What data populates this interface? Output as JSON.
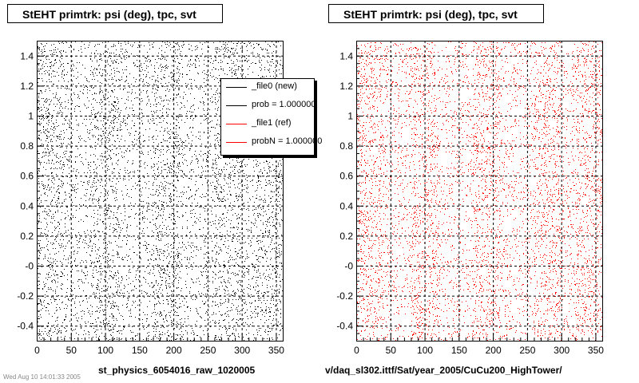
{
  "panels": [
    {
      "title": "StEHT primtrk: psi (deg), tpc, svt",
      "footer": "st_physics_6054016_raw_1020005",
      "marker_color": "#000000"
    },
    {
      "title": "StEHT primtrk: psi (deg), tpc, svt",
      "footer": "v/daq_sl302.ittf/Sat/year_2005/CuCu200_HighTower/",
      "marker_color": "#ff0000"
    }
  ],
  "legend": {
    "entries": [
      {
        "label": "_file0 (new)",
        "color": "#000000"
      },
      {
        "label": "prob = 1.000000",
        "color": "#000000"
      },
      {
        "label": "_file1 (ref)",
        "color": "#ff0000"
      },
      {
        "label": "probN = 1.000000",
        "color": "#ff0000"
      }
    ]
  },
  "footer_date": "Wed Aug 10 14:01:33 2005",
  "chart_data": [
    {
      "type": "scatter",
      "title": "StEHT primtrk: psi (deg), tpc, svt",
      "xlabel": "",
      "ylabel": "",
      "xlim": [
        0,
        360
      ],
      "ylim": [
        -0.5,
        1.5
      ],
      "x_ticks": [
        0,
        50,
        100,
        150,
        200,
        250,
        300,
        350
      ],
      "y_ticks": [
        {
          "value": -0.4,
          "label": "-0.4"
        },
        {
          "value": -0.2,
          "label": "-0.2"
        },
        {
          "value": 0.0,
          "label": "-0"
        },
        {
          "value": 0.2,
          "label": "0.2"
        },
        {
          "value": 0.4,
          "label": "0.4"
        },
        {
          "value": 0.6,
          "label": "0.6"
        },
        {
          "value": 0.8,
          "label": "0.8"
        },
        {
          "value": 1.0,
          "label": "1"
        },
        {
          "value": 1.2,
          "label": "1.2"
        },
        {
          "value": 1.4,
          "label": "1.4"
        }
      ],
      "grid": true,
      "legend_placement": "top-right",
      "series": [
        {
          "name": "_file0 (new)",
          "color": "#000000",
          "points": "approximately uniform scatter of ~6000 points over psi 0-360 deg and y -0.5 to 1.5, with denser vertical bands near psi 20, 100, 190, 280, 340"
        }
      ]
    },
    {
      "type": "scatter",
      "title": "StEHT primtrk: psi (deg), tpc, svt",
      "xlabel": "",
      "ylabel": "",
      "xlim": [
        0,
        360
      ],
      "ylim": [
        -0.5,
        1.5
      ],
      "x_ticks": [
        0,
        50,
        100,
        150,
        200,
        250,
        300,
        350
      ],
      "y_ticks": [
        {
          "value": -0.4,
          "label": "-0.4"
        },
        {
          "value": -0.2,
          "label": "-0.2"
        },
        {
          "value": 0.0,
          "label": "-0"
        },
        {
          "value": 0.2,
          "label": "0.2"
        },
        {
          "value": 0.4,
          "label": "0.4"
        },
        {
          "value": 0.6,
          "label": "0.6"
        },
        {
          "value": 0.8,
          "label": "0.8"
        },
        {
          "value": 1.0,
          "label": "1"
        },
        {
          "value": 1.2,
          "label": "1.2"
        },
        {
          "value": 1.4,
          "label": "1.4"
        }
      ],
      "grid": true,
      "series": [
        {
          "name": "_file1 (ref)",
          "color": "#ff0000",
          "points": "approximately uniform scatter of ~6000 points over psi 0-360 deg and y -0.5 to 1.5, with denser vertical bands near psi 20, 100, 190, 280, 340"
        }
      ]
    }
  ]
}
